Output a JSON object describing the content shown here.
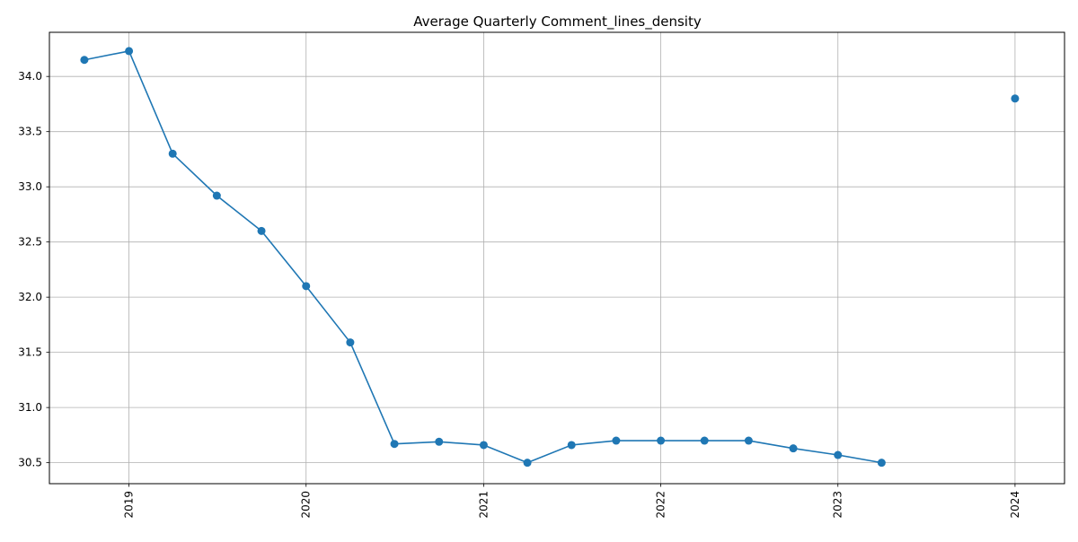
{
  "chart_data": {
    "type": "line",
    "title": "Average Quarterly Comment_lines_density",
    "xlabel": "",
    "ylabel": "",
    "x_ticks": [
      "2019",
      "2020",
      "2021",
      "2022",
      "2023",
      "2024"
    ],
    "y_ticks": [
      "30.5",
      "31.0",
      "31.5",
      "32.0",
      "32.5",
      "33.0",
      "33.5",
      "34.0"
    ],
    "xlim": [
      "2018-07-21",
      "2024-04-12"
    ],
    "ylim": [
      30.31,
      34.4
    ],
    "grid": true,
    "legend": "none",
    "series": [
      {
        "color": "#1f77b4",
        "points": [
          {
            "x": "2018-10-01",
            "y": 34.15
          },
          {
            "x": "2019-01-01",
            "y": 34.23
          },
          {
            "x": "2019-04-01",
            "y": 33.3
          },
          {
            "x": "2019-07-01",
            "y": 32.92
          },
          {
            "x": "2019-10-01",
            "y": 32.6
          },
          {
            "x": "2020-01-01",
            "y": 32.1
          },
          {
            "x": "2020-04-01",
            "y": 31.59
          },
          {
            "x": "2020-07-01",
            "y": 30.67
          },
          {
            "x": "2020-10-01",
            "y": 30.69
          },
          {
            "x": "2021-01-01",
            "y": 30.66
          },
          {
            "x": "2021-04-01",
            "y": 30.5
          },
          {
            "x": "2021-07-01",
            "y": 30.66
          },
          {
            "x": "2021-10-01",
            "y": 30.7
          },
          {
            "x": "2022-01-01",
            "y": 30.7
          },
          {
            "x": "2022-04-01",
            "y": 30.7
          },
          {
            "x": "2022-07-01",
            "y": 30.7
          },
          {
            "x": "2022-10-01",
            "y": 30.63
          },
          {
            "x": "2023-01-01",
            "y": 30.57
          },
          {
            "x": "2023-04-01",
            "y": 30.5
          },
          {
            "x": "2024-01-01",
            "y": 33.8,
            "isolated": true
          }
        ]
      }
    ]
  }
}
